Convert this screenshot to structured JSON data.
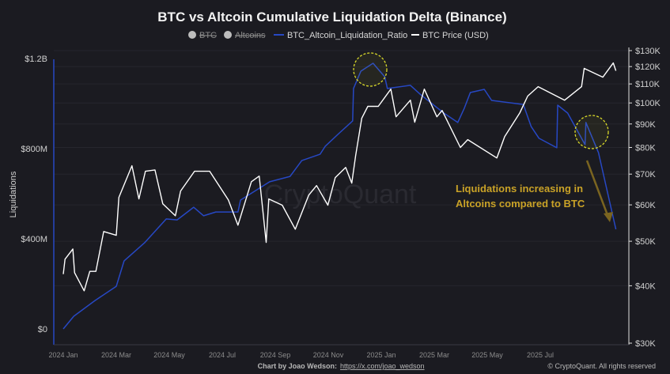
{
  "chart_data": {
    "type": "line",
    "title": "BTC vs Altcoin Cumulative Liquidation Delta (Binance)",
    "legend": {
      "placement": "top",
      "items": [
        {
          "label": "BTC",
          "marker": "circle",
          "hidden": true,
          "color": "#bdbdbd"
        },
        {
          "label": "Altcoins",
          "marker": "circle",
          "hidden": true,
          "color": "#bdbdbd"
        },
        {
          "label": "BTC_Altcoin_Liquidation_Ratio",
          "marker": "line",
          "hidden": false,
          "color": "#2748c4"
        },
        {
          "label": "BTC Price (USD)",
          "marker": "line",
          "hidden": false,
          "color": "#ffffff"
        }
      ]
    },
    "ylabel": "Liquidations",
    "left_axis": {
      "ylim": [
        0,
        1200000000
      ],
      "ticks": [
        "$0",
        "$400M",
        "$800M",
        "$1.2B"
      ],
      "tick_values": [
        0,
        400000000,
        800000000,
        1200000000
      ]
    },
    "right_axis": {
      "scale": "log",
      "ylim": [
        30000,
        130000
      ],
      "ticks": [
        "$30K",
        "$40K",
        "$50K",
        "$60K",
        "$70K",
        "$80K",
        "$90K",
        "$100K",
        "$110K",
        "$120K",
        "$130K"
      ],
      "tick_values": [
        30000,
        40000,
        50000,
        60000,
        70000,
        80000,
        90000,
        100000,
        110000,
        120000,
        130000
      ]
    },
    "x_ticks": [
      "2024 Jan",
      "2024 Mar",
      "2024 May",
      "2024 Jul",
      "2024 Sep",
      "2024 Nov",
      "2025 Jan",
      "2025 Mar",
      "2025 May",
      "2025 Jul"
    ],
    "x_tick_dates": [
      "2024-01-01",
      "2024-03-01",
      "2024-05-01",
      "2024-07-01",
      "2024-09-01",
      "2024-11-01",
      "2025-01-01",
      "2025-03-01",
      "2025-05-01",
      "2025-07-01"
    ],
    "grid": "horizontal",
    "series": [
      {
        "name": "BTC_Altcoin_Liquidation_Ratio",
        "axis": "left",
        "color": "#2748c4",
        "x": [
          "2024-01-01",
          "2024-01-13",
          "2024-02-07",
          "2024-03-01",
          "2024-03-10",
          "2024-04-03",
          "2024-04-28",
          "2024-05-10",
          "2024-05-29",
          "2024-06-10",
          "2024-06-24",
          "2024-07-19",
          "2024-07-22",
          "2024-08-25",
          "2024-09-18",
          "2024-10-01",
          "2024-10-22",
          "2024-10-28",
          "2024-11-12",
          "2024-11-29",
          "2024-11-30",
          "2024-12-08",
          "2024-12-22",
          "2025-01-05",
          "2025-01-08",
          "2025-02-04",
          "2025-02-16",
          "2025-03-12",
          "2025-03-28",
          "2025-04-05",
          "2025-04-12",
          "2025-04-28",
          "2025-05-06",
          "2025-06-12",
          "2025-06-21",
          "2025-06-30",
          "2025-07-20",
          "2025-07-21",
          "2025-08-02",
          "2025-08-22",
          "2025-08-23",
          "2025-09-07",
          "2025-09-27"
        ],
        "values": [
          0,
          56000000,
          126000000,
          189000000,
          302000000,
          382000000,
          488000000,
          484000000,
          540000000,
          502000000,
          519000000,
          519000000,
          572000000,
          653000000,
          677000000,
          747000000,
          775000000,
          811000000,
          863000000,
          923000000,
          1067000000,
          1144000000,
          1179000000,
          1119000000,
          1067000000,
          1081000000,
          1039000000,
          958000000,
          916000000,
          979000000,
          1049000000,
          1063000000,
          1014000000,
          996000000,
          898000000,
          846000000,
          804000000,
          993000000,
          958000000,
          818000000,
          916000000,
          782000000,
          442000000
        ]
      },
      {
        "name": "BTC Price (USD)",
        "axis": "right",
        "color": "#ffffff",
        "x": [
          "2024-01-01",
          "2024-01-03",
          "2024-01-12",
          "2024-01-14",
          "2024-01-25",
          "2024-02-01",
          "2024-02-08",
          "2024-02-17",
          "2024-03-01",
          "2024-03-04",
          "2024-03-19",
          "2024-03-27",
          "2024-04-04",
          "2024-04-15",
          "2024-04-24",
          "2024-05-08",
          "2024-05-14",
          "2024-05-30",
          "2024-06-17",
          "2024-07-08",
          "2024-07-19",
          "2024-08-04",
          "2024-08-13",
          "2024-08-21",
          "2024-08-24",
          "2024-09-09",
          "2024-09-24",
          "2024-10-09",
          "2024-10-18",
          "2024-10-31",
          "2024-11-09",
          "2024-11-21",
          "2024-11-28",
          "2024-12-02",
          "2024-12-09",
          "2024-12-16",
          "2024-12-28",
          "2025-01-12",
          "2025-01-18",
          "2025-02-04",
          "2025-02-09",
          "2025-02-20",
          "2025-03-04",
          "2025-03-10",
          "2025-03-31",
          "2025-04-09",
          "2025-05-12",
          "2025-05-21",
          "2025-06-08",
          "2025-06-17",
          "2025-06-29",
          "2025-07-29",
          "2025-08-18",
          "2025-08-21",
          "2025-09-12",
          "2025-09-24",
          "2025-09-27"
        ],
        "values": [
          42400,
          45700,
          48100,
          42700,
          39000,
          43000,
          43000,
          52500,
          51500,
          62300,
          73000,
          61800,
          71000,
          71500,
          60300,
          56800,
          64300,
          71000,
          71000,
          61500,
          54200,
          67400,
          69300,
          49700,
          61800,
          59900,
          53100,
          63000,
          66100,
          59900,
          68800,
          72400,
          66900,
          76800,
          92600,
          98300,
          98300,
          107200,
          93300,
          101400,
          90800,
          107200,
          93300,
          96300,
          80000,
          83200,
          75900,
          84500,
          95200,
          103500,
          108500,
          101400,
          108500,
          118900,
          113800,
          122200,
          117500
        ]
      }
    ],
    "annotations": [
      {
        "type": "text",
        "lines": [
          "Liquidations increasing in",
          "Altcoins compared to BTC"
        ],
        "color": "#c9a227"
      },
      {
        "type": "dashed-circle",
        "color": "#d9d92a"
      },
      {
        "type": "dashed-circle",
        "color": "#d9d92a"
      },
      {
        "type": "arrow",
        "color": "#7a6420"
      }
    ]
  },
  "watermark": "CryptoQuant",
  "footer": {
    "credit_label": "Chart by Joao Wedson:",
    "credit_link": "https://x.com/joao_wedson",
    "copyright": "© CryptoQuant. All rights reserved"
  }
}
